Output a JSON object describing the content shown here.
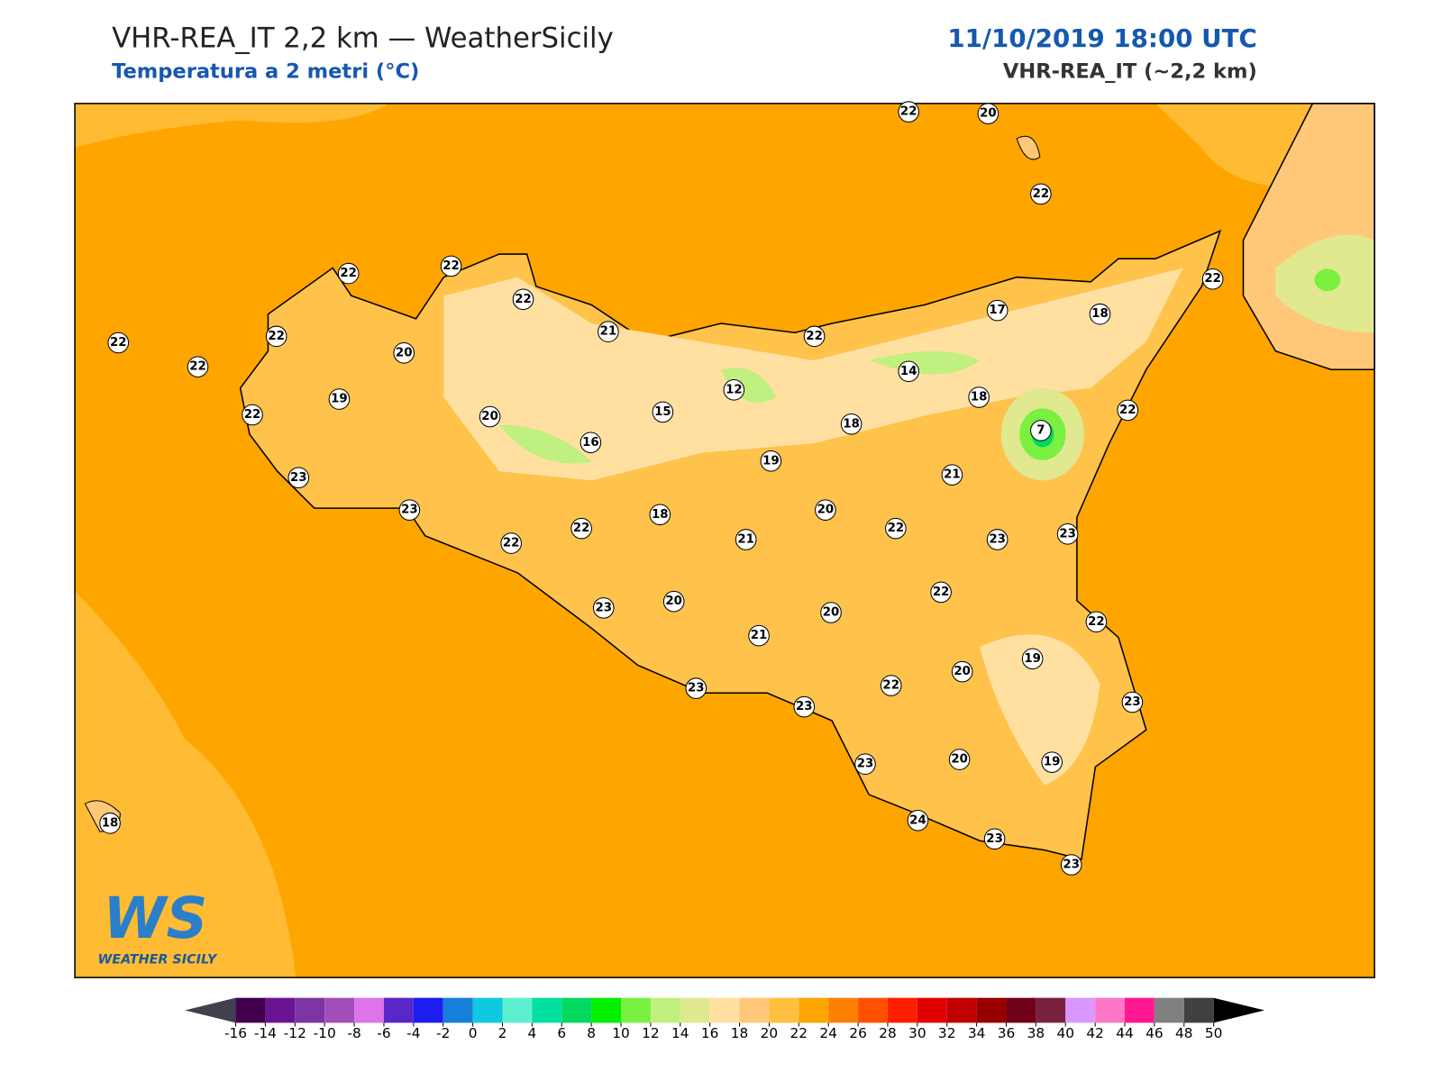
{
  "header": {
    "title": "VHR-REA_IT 2,2 km — WeatherSicily",
    "subtitle": "Temperatura a 2 metri (°C)",
    "date": "11/10/2019 18:00 UTC",
    "model": "VHR-REA_IT (~2,2 km)"
  },
  "logo": {
    "mark": "WS",
    "name": "WEATHER SICILY"
  },
  "stations": [
    22,
    20,
    22,
    22,
    22,
    22,
    22,
    22,
    22,
    20,
    21,
    22,
    17,
    18,
    22,
    19,
    14,
    12,
    15,
    18,
    22,
    20,
    16,
    18,
    7,
    22,
    19,
    21,
    23,
    23,
    18,
    20,
    22,
    22,
    21,
    22,
    23,
    23,
    22,
    23,
    20,
    20,
    21,
    22,
    19,
    20,
    22,
    23,
    23,
    23,
    23,
    20,
    19,
    24,
    23,
    23,
    18
  ],
  "colorbar": {
    "ticks": [
      -16,
      -14,
      -12,
      -10,
      -8,
      -6,
      -4,
      -2,
      0,
      2,
      4,
      6,
      8,
      10,
      12,
      14,
      16,
      18,
      20,
      22,
      24,
      26,
      28,
      30,
      32,
      34,
      36,
      38,
      40,
      42,
      44,
      46,
      48,
      50
    ],
    "colors": [
      "#42004f",
      "#6a1494",
      "#7d35a5",
      "#a24fb9",
      "#de73ea",
      "#5b26c8",
      "#1d1df0",
      "#1580d8",
      "#10c8e0",
      "#5cf0d0",
      "#00e0a0",
      "#00d860",
      "#00f000",
      "#7af040",
      "#c0f080",
      "#e0e890",
      "#ffe0a0",
      "#ffc878",
      "#ffc040",
      "#ffa500",
      "#ff8000",
      "#ff5000",
      "#ff1e00",
      "#e00000",
      "#c00000",
      "#980000",
      "#700018",
      "#7a2040",
      "#d898ff",
      "#ff78c8",
      "#ff1890",
      "#808080",
      "#404040"
    ]
  }
}
